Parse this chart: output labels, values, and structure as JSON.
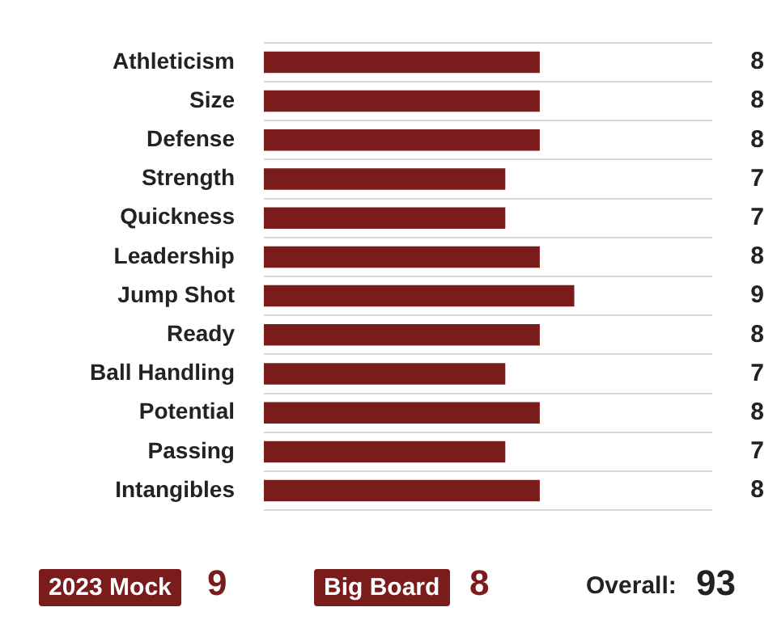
{
  "chart_data": {
    "type": "bar",
    "orientation": "horizontal",
    "categories": [
      "Athleticism",
      "Size",
      "Defense",
      "Strength",
      "Quickness",
      "Leadership",
      "Jump Shot",
      "Ready",
      "Ball Handling",
      "Potential",
      "Passing",
      "Intangibles"
    ],
    "values": [
      8,
      8,
      8,
      7,
      7,
      8,
      9,
      8,
      7,
      8,
      7,
      8
    ],
    "color": "#7a1c1c",
    "xlim": [
      0,
      13
    ],
    "tick_labels": "y",
    "grid": "y",
    "data_labels": true,
    "legend": false,
    "annotations": [
      "2023 Mock",
      "9",
      "Big Board",
      "8",
      "Overall:",
      "93"
    ]
  }
}
